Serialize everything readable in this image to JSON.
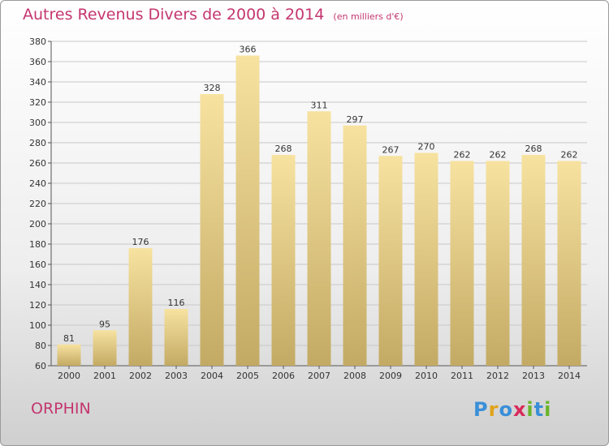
{
  "title": "Autres Revenus Divers de 2000 à 2014",
  "subtitle": "(en milliers d'€)",
  "place": "ORPHIN",
  "logo": {
    "letters": [
      "P",
      "r",
      "o",
      "x",
      "i",
      "t",
      "i"
    ],
    "colors": [
      "#3a8fd8",
      "#e0a31a",
      "#3a8fd8",
      "#d82a5a",
      "#69b52a",
      "#3a8fd8",
      "#69b52a"
    ]
  },
  "colors": {
    "accent": "#c4366f",
    "bar_light": "#f7e2a0",
    "bar_dark": "#c3aa64",
    "grid": "#c8c8c8"
  },
  "chart_data": {
    "type": "bar",
    "title": "Autres Revenus Divers de 2000 à 2014",
    "subtitle": "(en milliers d'€)",
    "categories": [
      "2000",
      "2001",
      "2002",
      "2003",
      "2004",
      "2005",
      "2006",
      "2007",
      "2008",
      "2009",
      "2010",
      "2011",
      "2012",
      "2013",
      "2014"
    ],
    "values": [
      81,
      95,
      176,
      116,
      328,
      366,
      268,
      311,
      297,
      267,
      270,
      262,
      262,
      268,
      262
    ],
    "ylim": [
      60,
      380
    ],
    "yticks": [
      60,
      80,
      100,
      120,
      140,
      160,
      180,
      200,
      220,
      240,
      260,
      280,
      300,
      320,
      340,
      360,
      380
    ],
    "grid": "horizontal",
    "xlabel": "",
    "ylabel": ""
  }
}
